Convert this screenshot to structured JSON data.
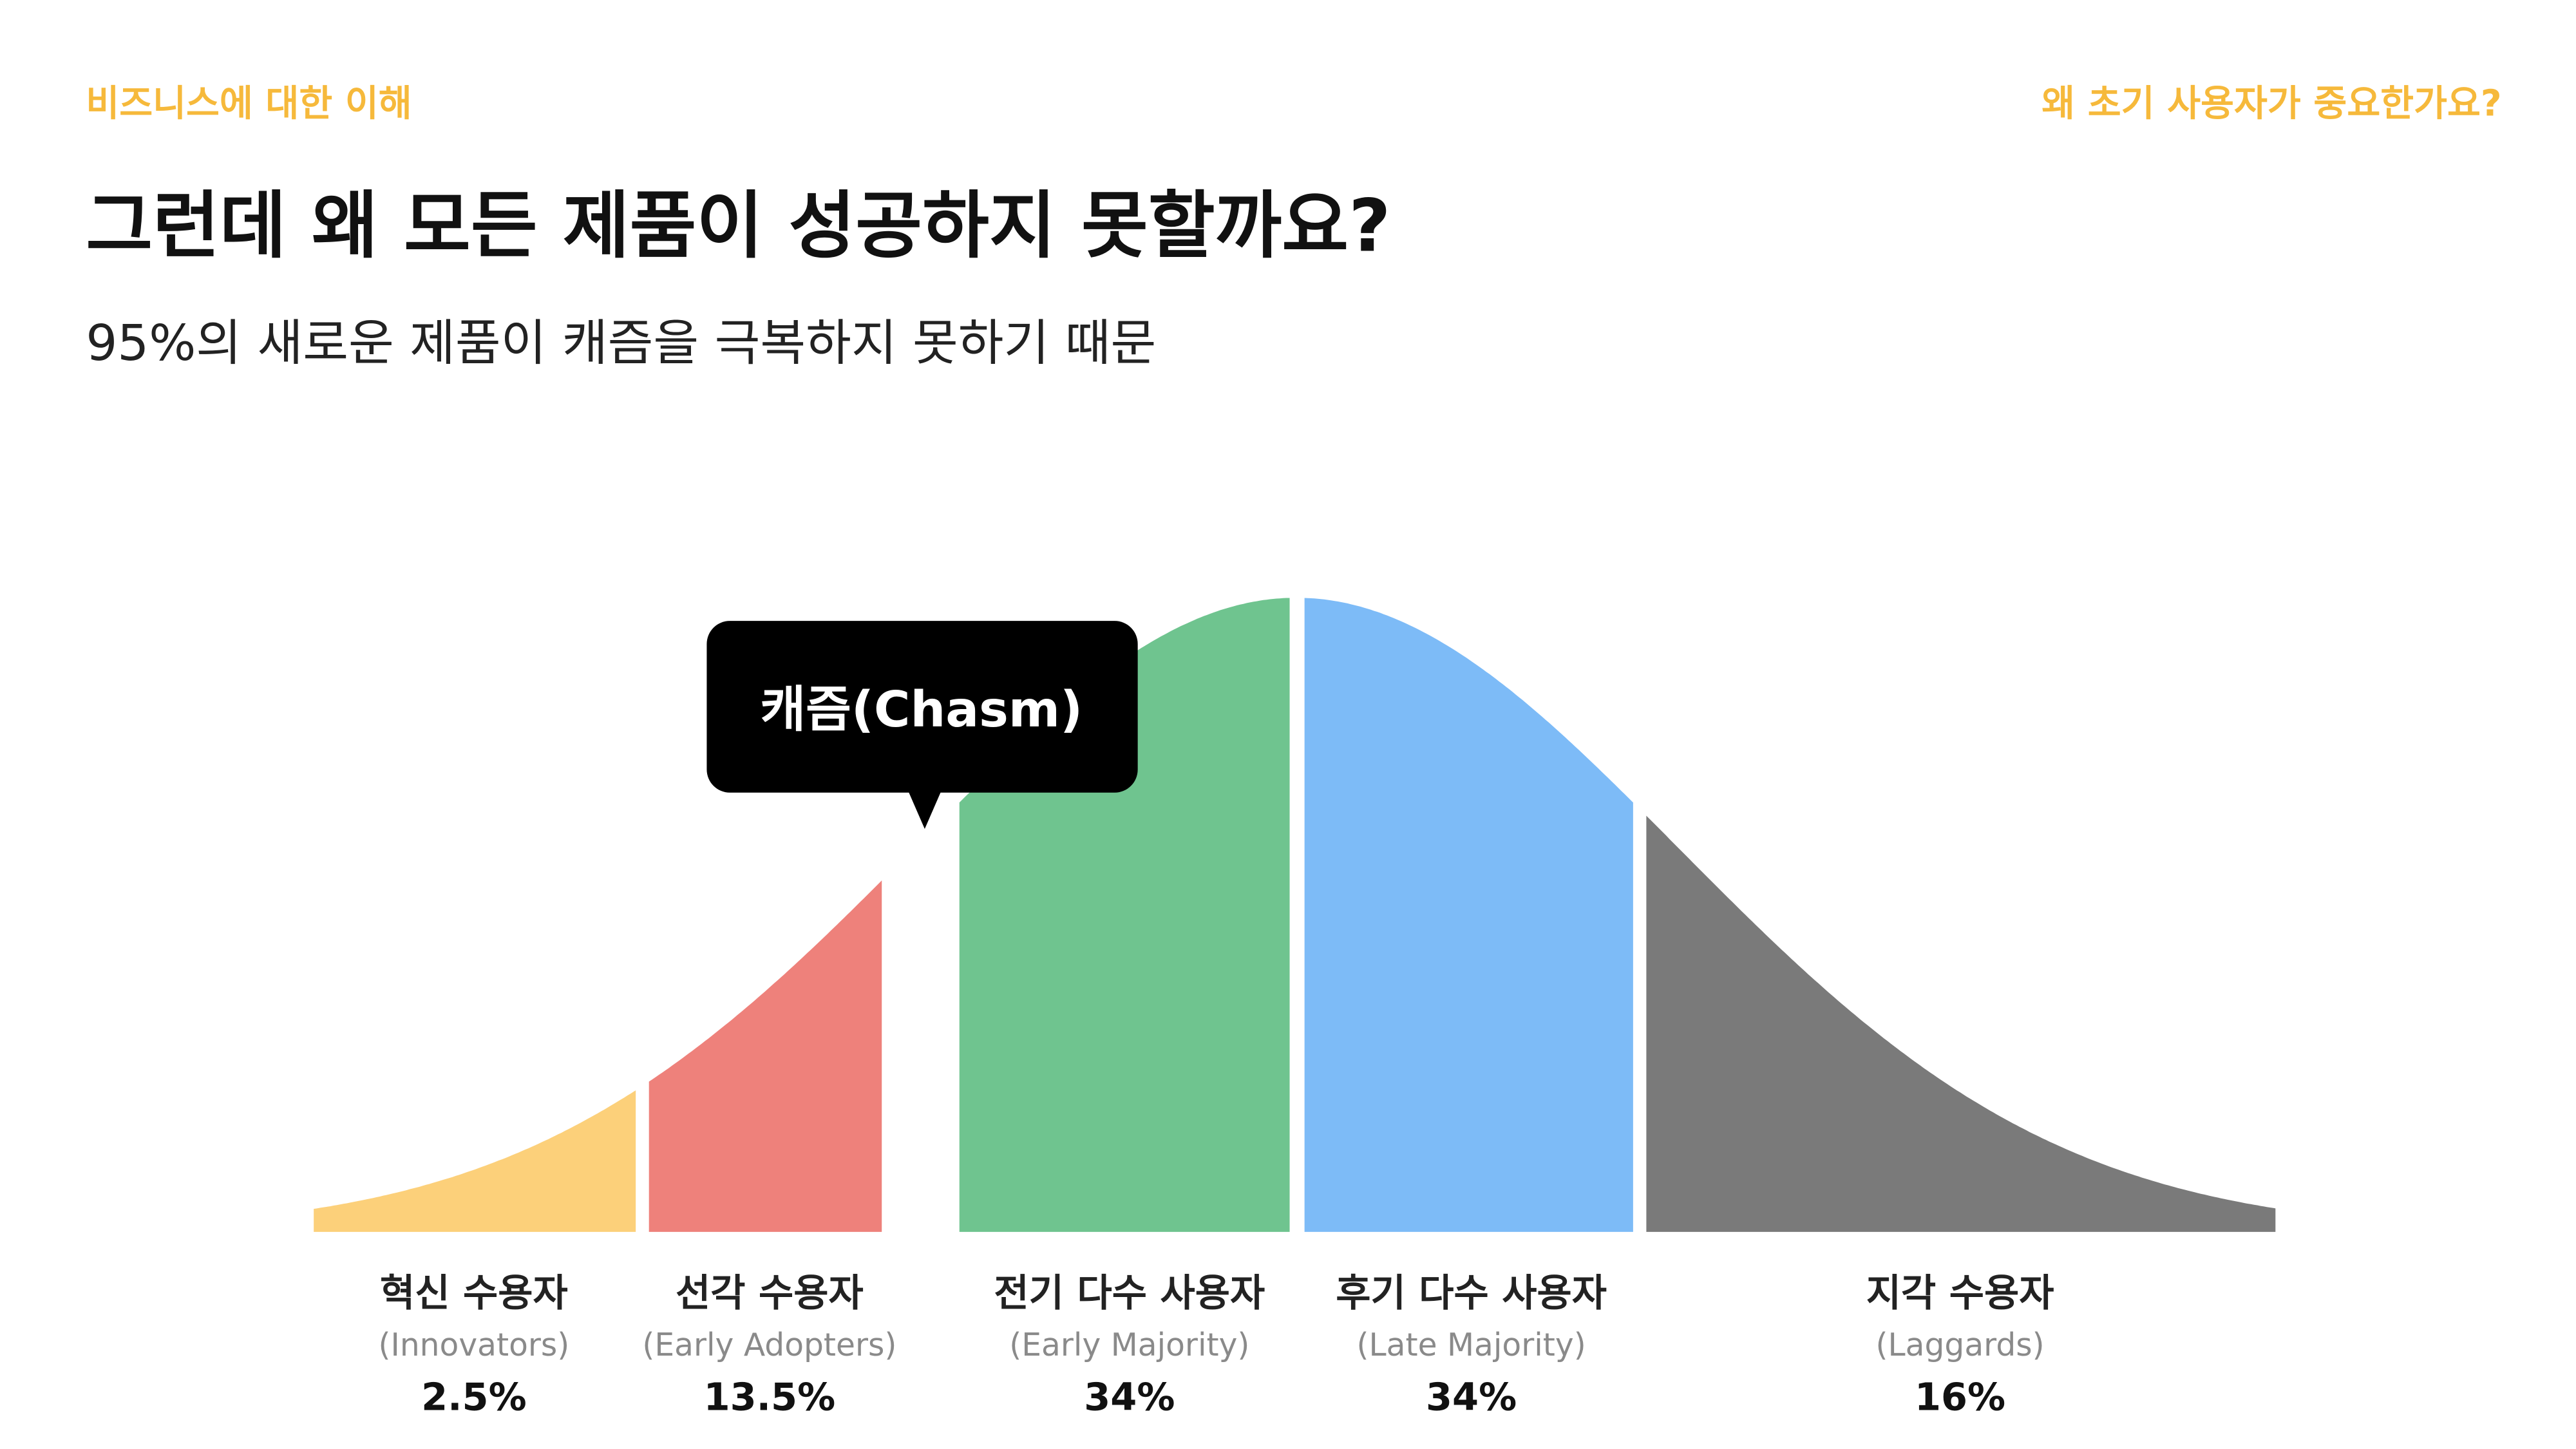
{
  "header": {
    "section": "비즈니스에 대한 이해",
    "topic": "왜 초기 사용자가 중요한가요?"
  },
  "title": "그런데 왜 모든 제품이 성공하지 못할까요?",
  "subtitle": "95%의 새로운 제품이 캐즘을 극복하지 못하기 때문",
  "callout": "캐즘(Chasm)",
  "segments": [
    {
      "name": "혁신 수용자",
      "english": "(Innovators)",
      "share": "2.5%"
    },
    {
      "name": "선각 수용자",
      "english": "(Early Adopters)",
      "share": "13.5%"
    },
    {
      "name": "전기 다수 사용자",
      "english": "(Early Majority)",
      "share": "34%"
    },
    {
      "name": "후기 다수 사용자",
      "english": "(Late Majority)",
      "share": "34%"
    },
    {
      "name": "지각 수용자",
      "english": "(Laggards)",
      "share": "16%"
    }
  ]
}
